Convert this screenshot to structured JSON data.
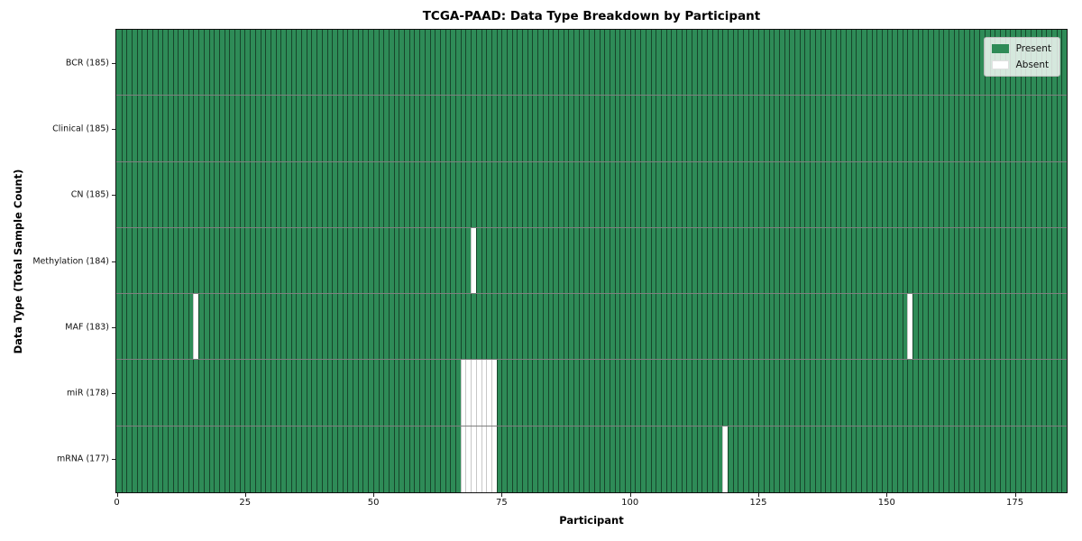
{
  "chart_data": {
    "type": "heatmap",
    "title": "TCGA-PAAD: Data Type Breakdown by Participant",
    "xlabel": "Participant",
    "ylabel": "Data Type (Total Sample Count)",
    "total_participants": 185,
    "x_ticks": [
      0,
      25,
      50,
      75,
      100,
      125,
      150,
      175
    ],
    "colors": {
      "present": "#2e8b57",
      "absent": "#ffffff"
    },
    "legend": [
      {
        "label": "Present",
        "state": "present"
      },
      {
        "label": "Absent",
        "state": "absent"
      }
    ],
    "rows": [
      {
        "label": "BCR (185)",
        "data_type": "BCR",
        "present_count": 185,
        "absent_participants": []
      },
      {
        "label": "Clinical (185)",
        "data_type": "Clinical",
        "present_count": 185,
        "absent_participants": []
      },
      {
        "label": "CN (185)",
        "data_type": "CN",
        "present_count": 185,
        "absent_participants": []
      },
      {
        "label": "Methylation (184)",
        "data_type": "Methylation",
        "present_count": 184,
        "absent_participants": [
          69
        ]
      },
      {
        "label": "MAF (183)",
        "data_type": "MAF",
        "present_count": 183,
        "absent_participants": [
          15,
          154
        ]
      },
      {
        "label": "miR (178)",
        "data_type": "miR",
        "present_count": 178,
        "absent_participants": [
          67,
          68,
          69,
          70,
          71,
          72,
          73
        ]
      },
      {
        "label": "mRNA (177)",
        "data_type": "mRNA",
        "present_count": 177,
        "absent_participants": [
          67,
          68,
          69,
          70,
          71,
          72,
          73,
          118
        ]
      }
    ],
    "layout": {
      "legend_position": "upper right",
      "grid": "cell-edges"
    }
  }
}
